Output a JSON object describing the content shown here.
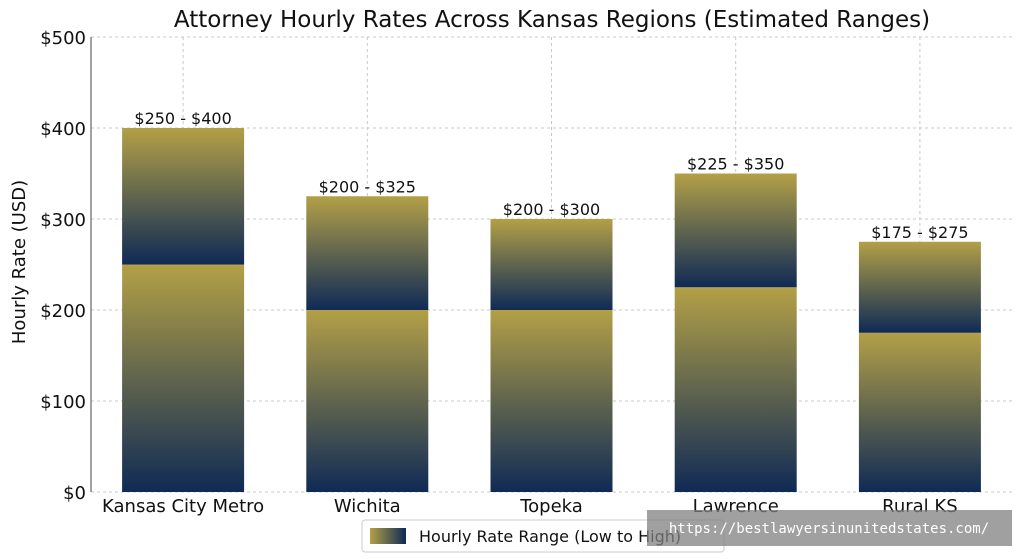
{
  "chart_data": {
    "type": "bar",
    "title": "Attorney Hourly Rates Across Kansas Regions (Estimated Ranges)",
    "xlabel": "",
    "ylabel": "Hourly Rate (USD)",
    "ylim": [
      0,
      500
    ],
    "yticks": [
      0,
      100,
      200,
      300,
      400,
      500
    ],
    "ytick_labels": [
      "$0",
      "$100",
      "$200",
      "$300",
      "$400",
      "$500"
    ],
    "categories": [
      "Kansas City Metro",
      "Wichita",
      "Topeka",
      "Lawrence",
      "Rural KS"
    ],
    "series": [
      {
        "name": "Hourly Rate Range (Low to High)",
        "low": [
          250,
          200,
          200,
          225,
          175
        ],
        "high": [
          400,
          325,
          300,
          350,
          275
        ]
      }
    ],
    "data_labels": [
      "$250 - $400",
      "$200 - $325",
      "$200 - $300",
      "$225 - $350",
      "$175 - $275"
    ],
    "grid": true,
    "legend_position": "bottom-center",
    "colors": {
      "gold": "#b3a046",
      "navy": "#0f2a55"
    }
  },
  "watermark": "https://bestlawyersinunitedstates.com/"
}
